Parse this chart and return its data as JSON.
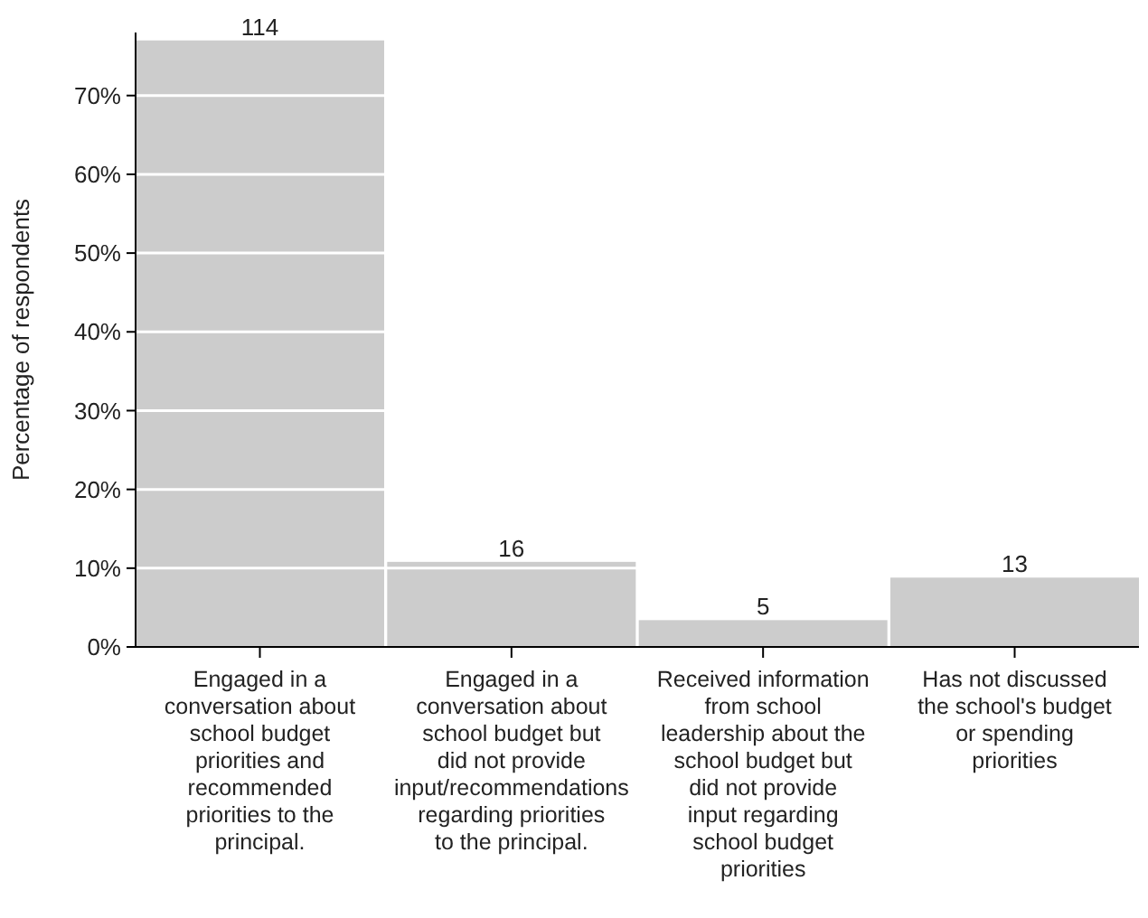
{
  "chart_data": {
    "type": "bar",
    "ylabel": "Percentage of respondents",
    "categories": [
      "Engaged in a conversation about school budget priorities and recommended priorities to the principal.",
      "Engaged in a conversation about school budget but did not provide input/recommendations regarding priorities to the principal.",
      "Received information from school leadership about the school budget but did not provide input regarding school budget priorities",
      "Has not discussed the school's budget or spending priorities"
    ],
    "values": [
      77.0,
      10.8,
      3.4,
      8.8
    ],
    "color": "#cccccc",
    "annotations": [
      {
        "text": "114",
        "x": "Engaged in a conversation about school budget priorities and recommended priorities to the principal.",
        "y": 77.0
      },
      {
        "text": "16",
        "x": "Engaged in a conversation about school budget but did not provide input/recommendations regarding priorities to the principal.",
        "y": 10.8
      },
      {
        "text": "5",
        "x": "Received information from school leadership about the school budget but did not provide input regarding school budget priorities",
        "y": 3.4
      },
      {
        "text": "13",
        "x": "Has not discussed the school's budget or spending priorities",
        "y": 8.8
      }
    ],
    "ylim": [
      0,
      78
    ],
    "yticks": [
      {
        "value": 0,
        "label": "0%"
      },
      {
        "value": 10,
        "label": "10%"
      },
      {
        "value": 20,
        "label": "20%"
      },
      {
        "value": 30,
        "label": "30%"
      },
      {
        "value": 40,
        "label": "40%"
      },
      {
        "value": 50,
        "label": "50%"
      },
      {
        "value": 60,
        "label": "60%"
      },
      {
        "value": 70,
        "label": "70%"
      }
    ],
    "grid": "y"
  }
}
